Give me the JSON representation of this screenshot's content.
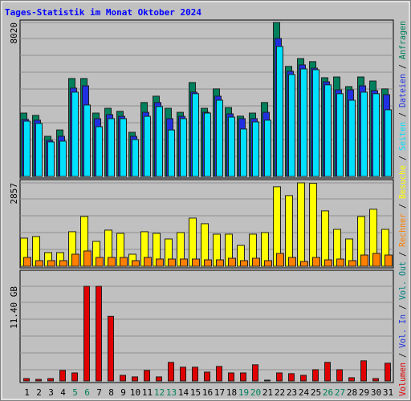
{
  "chart_data": [
    {
      "type": "bar",
      "title": "Tages-Statistik im Monat Oktober 2024",
      "ylim": [
        0,
        8020
      ],
      "yticks": [
        8020
      ],
      "series": [
        {
          "name": "Anfragen",
          "color": "#00805c",
          "values": [
            3300,
            3180,
            2090,
            2420,
            5100,
            5100,
            3300,
            3550,
            3390,
            2300,
            3850,
            4180,
            3550,
            3340,
            4890,
            3550,
            4560,
            3590,
            3140,
            3300,
            3850,
            8020,
            5730,
            6140,
            5980,
            5140,
            5180,
            4680,
            5180,
            4970,
            4560
          ]
        },
        {
          "name": "Dateien",
          "color": "#2030e0",
          "values": [
            2970,
            2930,
            1880,
            2090,
            4600,
            4720,
            3010,
            3220,
            3130,
            2090,
            3340,
            3850,
            3010,
            3130,
            4390,
            3340,
            4180,
            3260,
            3010,
            3010,
            3340,
            7190,
            5480,
            5810,
            5640,
            4930,
            4510,
            4510,
            4720,
            4470,
            4260
          ]
        },
        {
          "name": "Seiten",
          "color": "#00e0ff",
          "values": [
            2880,
            2760,
            1800,
            1840,
            4390,
            3720,
            2590,
            3010,
            3010,
            1920,
            3130,
            3640,
            2420,
            3010,
            4310,
            3300,
            3970,
            3090,
            2470,
            2840,
            2930,
            6770,
            5310,
            5600,
            5560,
            4770,
            4310,
            3970,
            4390,
            4310,
            3470
          ]
        }
      ]
    },
    {
      "type": "bar",
      "ylim": [
        0,
        2857
      ],
      "yticks": [
        2857
      ],
      "series": [
        {
          "name": "Besuche",
          "color": "#ffff00",
          "values": [
            963,
            1018,
            468,
            468,
            1183,
            1705,
            853,
            1238,
            1128,
            413,
            1183,
            1128,
            935,
            1155,
            1650,
            1458,
            1100,
            1100,
            715,
            1100,
            1155,
            2723,
            2420,
            2857,
            2840,
            1898,
            1265,
            935,
            1705,
            1953,
            1265
          ]
        },
        {
          "name": "Rechner",
          "color": "#ff8000",
          "values": [
            302,
            193,
            193,
            193,
            413,
            523,
            302,
            302,
            302,
            193,
            302,
            248,
            248,
            248,
            248,
            220,
            220,
            275,
            193,
            275,
            193,
            440,
            302,
            165,
            302,
            220,
            248,
            193,
            385,
            440,
            385
          ]
        }
      ]
    },
    {
      "type": "bar",
      "ylim": [
        0,
        11.4
      ],
      "yticks": [
        {
          "value": 11.4,
          "label": "11.40 GB"
        }
      ],
      "legend": [
        {
          "name": "Vol. Out",
          "color": "#008080"
        },
        {
          "name": "Vol. In",
          "color": "#2030e0"
        }
      ],
      "series": [
        {
          "name": "Volumen",
          "color": "#e00000",
          "values": [
            0.29,
            0.19,
            0.29,
            1.27,
            0.97,
            11.4,
            11.4,
            7.79,
            0.68,
            0.49,
            1.27,
            0.49,
            2.24,
            1.66,
            1.66,
            1.07,
            1.75,
            0.97,
            0.97,
            1.95,
            0.1,
            0.97,
            0.88,
            0.68,
            1.36,
            2.24,
            1.36,
            0.39,
            2.43,
            0.29,
            2.14
          ]
        }
      ],
      "categories": [
        "1",
        "2",
        "3",
        "4",
        "5",
        "6",
        "7",
        "8",
        "9",
        "10",
        "11",
        "12",
        "13",
        "14",
        "15",
        "16",
        "17",
        "18",
        "19",
        "20",
        "21",
        "22",
        "23",
        "24",
        "25",
        "26",
        "27",
        "28",
        "29",
        "30",
        "31"
      ],
      "x_label_colors": [
        "#000",
        "#000",
        "#000",
        "#000",
        "#00805c",
        "#00805c",
        "#000",
        "#000",
        "#000",
        "#000",
        "#000",
        "#00805c",
        "#00805c",
        "#000",
        "#000",
        "#000",
        "#000",
        "#000",
        "#00805c",
        "#00805c",
        "#000",
        "#000",
        "#000",
        "#000",
        "#000",
        "#00805c",
        "#00805c",
        "#000",
        "#000",
        "#000",
        "#000"
      ]
    }
  ]
}
